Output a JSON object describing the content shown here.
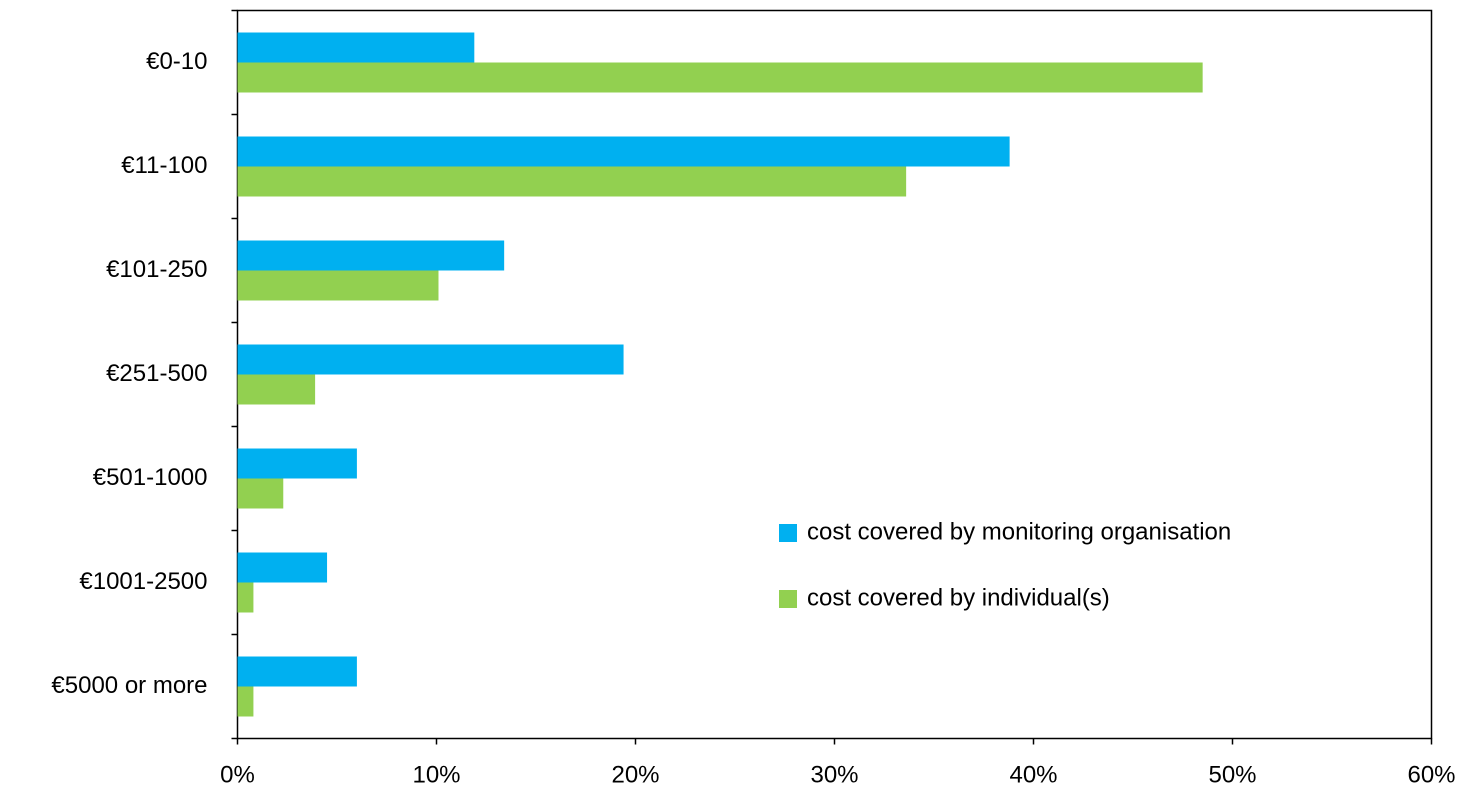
{
  "chart_data": {
    "type": "bar",
    "orientation": "horizontal",
    "categories": [
      "€0-10",
      "€11-100",
      "€101-250",
      "€251-500",
      "€501-1000",
      "€1001-2500",
      "€5000 or more"
    ],
    "series": [
      {
        "name": "cost covered by monitoring organisation",
        "color": "#00b0f0",
        "values": [
          11.9,
          38.8,
          13.4,
          19.4,
          6.0,
          4.5,
          6.0
        ]
      },
      {
        "name": "cost covered by individual(s)",
        "color": "#92d050",
        "values": [
          48.5,
          33.6,
          10.1,
          3.9,
          2.3,
          0.8,
          0.8
        ]
      }
    ],
    "xlim": [
      0,
      60
    ],
    "xticks": [
      "0%",
      "10%",
      "20%",
      "30%",
      "40%",
      "50%",
      "60%"
    ],
    "title": "",
    "xlabel": "",
    "ylabel": "",
    "grid": false,
    "legend_position": "right, inside plot area"
  }
}
